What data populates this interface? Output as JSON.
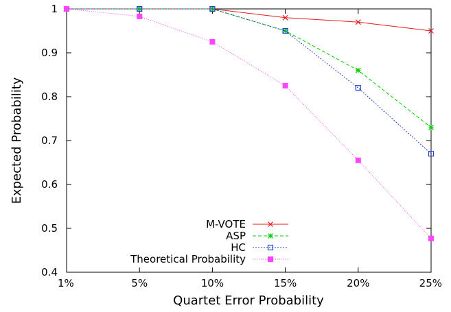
{
  "chart_data": {
    "type": "line",
    "xlabel": "Quartet Error Probability",
    "ylabel": "Expected Probability",
    "categories": [
      "1%",
      "5%",
      "10%",
      "15%",
      "20%",
      "25%"
    ],
    "ylim": [
      0.4,
      1.0
    ],
    "yticks": [
      "0.4",
      "0.5",
      "0.6",
      "0.7",
      "0.8",
      "0.9",
      "1"
    ],
    "grid": false,
    "legend_position": "bottom-right",
    "series": [
      {
        "name": "M-VOTE",
        "values": [
          1.0,
          1.0,
          1.0,
          0.98,
          0.97,
          0.95
        ],
        "color": "#e41a1c",
        "marker": "x",
        "dash": ""
      },
      {
        "name": "ASP",
        "values": [
          1.0,
          1.0,
          1.0,
          0.95,
          0.86,
          0.73
        ],
        "color": "#00cc00",
        "marker": "star",
        "dash": "5,3"
      },
      {
        "name": "HC",
        "values": [
          1.0,
          1.0,
          1.0,
          0.95,
          0.82,
          0.67
        ],
        "color": "#1f3fcf",
        "marker": "open-square",
        "dash": "2,2"
      },
      {
        "name": "Theoretical Probability",
        "values": [
          1.0,
          0.983,
          0.925,
          0.825,
          0.655,
          0.477
        ],
        "color": "#ff44ff",
        "marker": "filled-square",
        "dash": "1,2"
      }
    ]
  }
}
